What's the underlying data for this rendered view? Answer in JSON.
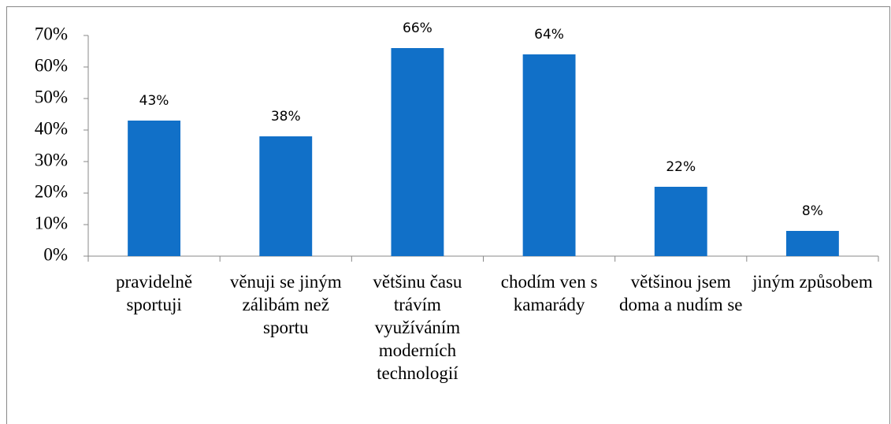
{
  "chart_data": {
    "type": "bar",
    "categories": [
      "pravidelně sportuji",
      "věnuji se jiným zálibám než sportu",
      "většinu času trávím využíváním moderních technologií",
      "chodím ven s kamarády",
      "většinou jsem doma a nudím se",
      "jiným způsobem"
    ],
    "values": [
      43,
      38,
      66,
      64,
      22,
      8
    ],
    "value_labels": [
      "43%",
      "38%",
      "66%",
      "64%",
      "22%",
      "8%"
    ],
    "color": "#1170c8",
    "ylim": [
      0,
      70
    ],
    "yticks": [
      {
        "value": 0,
        "label": "0%"
      },
      {
        "value": 10,
        "label": "10%"
      },
      {
        "value": 20,
        "label": "20%"
      },
      {
        "value": 30,
        "label": "30%"
      },
      {
        "value": 40,
        "label": "40%"
      },
      {
        "value": 50,
        "label": "50%"
      },
      {
        "value": 60,
        "label": "60%"
      },
      {
        "value": 70,
        "label": "70%"
      }
    ],
    "grid": false
  }
}
